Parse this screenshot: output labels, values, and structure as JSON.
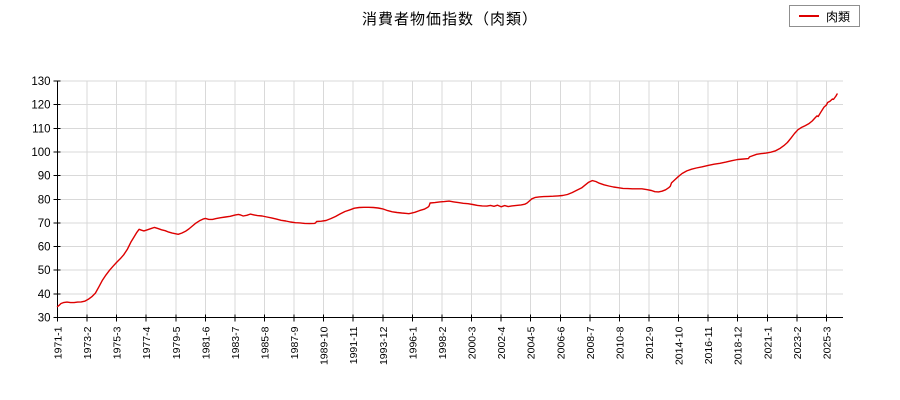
{
  "title": "消費者物価指数（肉類）",
  "legend": {
    "label": "肉類",
    "line_color": "#dd0000"
  },
  "colors": {
    "background": "#ffffff",
    "grid": "#d9d9d9",
    "axis": "#000000",
    "tick_text": "#000000",
    "series_red": "#dd0000"
  },
  "chart_data": {
    "type": "line",
    "title": "消費者物価指数（肉類）",
    "xlabel": "",
    "ylabel": "",
    "ylim": [
      30,
      130
    ],
    "y_ticks": [
      30,
      40,
      50,
      60,
      70,
      80,
      90,
      100,
      110,
      120,
      130
    ],
    "x_tick_labels": [
      "1971-1",
      "1973-2",
      "1975-3",
      "1977-4",
      "1979-5",
      "1981-6",
      "1983-7",
      "1985-8",
      "1987-9",
      "1989-10",
      "1991-11",
      "1993-12",
      "1996-1",
      "1998-2",
      "2000-3",
      "2002-4",
      "2004-5",
      "2006-6",
      "2008-7",
      "2010-8",
      "2012-9",
      "2014-10",
      "2016-11",
      "2018-12",
      "2021-1",
      "2023-2",
      "2025-3"
    ],
    "x_tick_month_interval": 25,
    "x_axis_months_total": 664,
    "grid": true,
    "legend_position": "top-right",
    "series": [
      {
        "name": "肉類",
        "color": "#dd0000",
        "points": [
          [
            "1971-1",
            34.6
          ],
          [
            "1971-2",
            35.0
          ],
          [
            "1971-4",
            35.9
          ],
          [
            "1971-6",
            36.3
          ],
          [
            "1971-9",
            36.5
          ],
          [
            "1971-12",
            36.3
          ],
          [
            "1972-3",
            36.3
          ],
          [
            "1972-6",
            36.5
          ],
          [
            "1972-9",
            36.6
          ],
          [
            "1972-12",
            36.9
          ],
          [
            "1973-3",
            37.7
          ],
          [
            "1973-6",
            38.8
          ],
          [
            "1973-9",
            40.3
          ],
          [
            "1973-12",
            43.0
          ],
          [
            "1974-3",
            45.8
          ],
          [
            "1974-6",
            48.0
          ],
          [
            "1974-9",
            50.0
          ],
          [
            "1974-12",
            51.7
          ],
          [
            "1975-3",
            53.3
          ],
          [
            "1975-6",
            54.8
          ],
          [
            "1975-9",
            56.5
          ],
          [
            "1975-12",
            58.8
          ],
          [
            "1976-3",
            61.8
          ],
          [
            "1976-6",
            64.3
          ],
          [
            "1976-8",
            66.0
          ],
          [
            "1976-10",
            67.3
          ],
          [
            "1976-12",
            66.9
          ],
          [
            "1977-2",
            66.6
          ],
          [
            "1977-5",
            67.1
          ],
          [
            "1977-8",
            67.6
          ],
          [
            "1977-11",
            68.1
          ],
          [
            "1978-2",
            67.6
          ],
          [
            "1978-5",
            67.1
          ],
          [
            "1978-8",
            66.7
          ],
          [
            "1978-11",
            66.1
          ],
          [
            "1979-2",
            65.7
          ],
          [
            "1979-5",
            65.4
          ],
          [
            "1979-7",
            65.2
          ],
          [
            "1979-10",
            65.7
          ],
          [
            "1980-1",
            66.4
          ],
          [
            "1980-4",
            67.4
          ],
          [
            "1980-7",
            68.7
          ],
          [
            "1980-10",
            69.9
          ],
          [
            "1981-1",
            70.9
          ],
          [
            "1981-4",
            71.6
          ],
          [
            "1981-6",
            71.9
          ],
          [
            "1981-9",
            71.5
          ],
          [
            "1981-12",
            71.5
          ],
          [
            "1982-3",
            71.8
          ],
          [
            "1982-7",
            72.2
          ],
          [
            "1982-11",
            72.5
          ],
          [
            "1983-3",
            72.8
          ],
          [
            "1983-7",
            73.3
          ],
          [
            "1983-10",
            73.6
          ],
          [
            "1983-12",
            73.3
          ],
          [
            "1984-2",
            72.9
          ],
          [
            "1984-5",
            73.2
          ],
          [
            "1984-8",
            73.7
          ],
          [
            "1984-11",
            73.4
          ],
          [
            "1985-2",
            73.1
          ],
          [
            "1985-6",
            72.9
          ],
          [
            "1985-10",
            72.5
          ],
          [
            "1986-2",
            72.1
          ],
          [
            "1986-6",
            71.6
          ],
          [
            "1986-10",
            71.1
          ],
          [
            "1987-2",
            70.8
          ],
          [
            "1987-6",
            70.4
          ],
          [
            "1987-10",
            70.1
          ],
          [
            "1988-2",
            70.0
          ],
          [
            "1988-6",
            69.8
          ],
          [
            "1988-10",
            69.7
          ],
          [
            "1989-2",
            69.8
          ],
          [
            "1989-3",
            69.9
          ],
          [
            "1989-4",
            70.6
          ],
          [
            "1989-8",
            70.7
          ],
          [
            "1989-12",
            71.0
          ],
          [
            "1990-4",
            71.8
          ],
          [
            "1990-8",
            72.7
          ],
          [
            "1990-12",
            73.8
          ],
          [
            "1991-4",
            74.8
          ],
          [
            "1991-8",
            75.5
          ],
          [
            "1991-12",
            76.2
          ],
          [
            "1992-4",
            76.5
          ],
          [
            "1992-8",
            76.6
          ],
          [
            "1992-12",
            76.6
          ],
          [
            "1993-4",
            76.5
          ],
          [
            "1993-8",
            76.3
          ],
          [
            "1993-12",
            75.9
          ],
          [
            "1994-4",
            75.2
          ],
          [
            "1994-8",
            74.7
          ],
          [
            "1994-12",
            74.4
          ],
          [
            "1995-4",
            74.2
          ],
          [
            "1995-8",
            74.0
          ],
          [
            "1995-10",
            73.9
          ],
          [
            "1995-12",
            74.1
          ],
          [
            "1996-3",
            74.5
          ],
          [
            "1996-7",
            75.2
          ],
          [
            "1996-11",
            75.8
          ],
          [
            "1997-2",
            76.6
          ],
          [
            "1997-3",
            77.1
          ],
          [
            "1997-4",
            78.4
          ],
          [
            "1997-8",
            78.6
          ],
          [
            "1997-12",
            78.9
          ],
          [
            "1998-4",
            79.0
          ],
          [
            "1998-8",
            79.2
          ],
          [
            "1998-12",
            78.9
          ],
          [
            "1999-4",
            78.6
          ],
          [
            "1999-8",
            78.3
          ],
          [
            "1999-12",
            78.1
          ],
          [
            "2000-4",
            77.8
          ],
          [
            "2000-8",
            77.4
          ],
          [
            "2000-12",
            77.2
          ],
          [
            "2001-4",
            77.1
          ],
          [
            "2001-7",
            77.4
          ],
          [
            "2001-10",
            77.0
          ],
          [
            "2002-1",
            77.5
          ],
          [
            "2002-4",
            76.8
          ],
          [
            "2002-7",
            77.3
          ],
          [
            "2002-10",
            76.9
          ],
          [
            "2003-1",
            77.2
          ],
          [
            "2003-5",
            77.4
          ],
          [
            "2003-9",
            77.6
          ],
          [
            "2003-12",
            77.9
          ],
          [
            "2004-2",
            78.4
          ],
          [
            "2004-4",
            79.3
          ],
          [
            "2004-6",
            80.2
          ],
          [
            "2004-9",
            80.8
          ],
          [
            "2004-12",
            81.0
          ],
          [
            "2005-4",
            81.1
          ],
          [
            "2005-8",
            81.2
          ],
          [
            "2005-12",
            81.3
          ],
          [
            "2006-4",
            81.4
          ],
          [
            "2006-8",
            81.6
          ],
          [
            "2006-12",
            82.0
          ],
          [
            "2007-4",
            82.8
          ],
          [
            "2007-8",
            83.8
          ],
          [
            "2007-12",
            84.8
          ],
          [
            "2008-3",
            86.0
          ],
          [
            "2008-6",
            87.2
          ],
          [
            "2008-9",
            87.9
          ],
          [
            "2008-12",
            87.5
          ],
          [
            "2009-3",
            86.8
          ],
          [
            "2009-7",
            86.1
          ],
          [
            "2009-11",
            85.6
          ],
          [
            "2010-3",
            85.2
          ],
          [
            "2010-7",
            84.9
          ],
          [
            "2010-11",
            84.6
          ],
          [
            "2011-3",
            84.5
          ],
          [
            "2011-7",
            84.4
          ],
          [
            "2011-11",
            84.4
          ],
          [
            "2012-3",
            84.4
          ],
          [
            "2012-7",
            84.1
          ],
          [
            "2012-11",
            83.7
          ],
          [
            "2013-2",
            83.2
          ],
          [
            "2013-5",
            83.1
          ],
          [
            "2013-8",
            83.4
          ],
          [
            "2013-11",
            84.0
          ],
          [
            "2014-2",
            85.0
          ],
          [
            "2014-3",
            85.5
          ],
          [
            "2014-4",
            86.9
          ],
          [
            "2014-7",
            88.3
          ],
          [
            "2014-10",
            89.7
          ],
          [
            "2015-1",
            90.9
          ],
          [
            "2015-5",
            92.0
          ],
          [
            "2015-9",
            92.7
          ],
          [
            "2016-1",
            93.2
          ],
          [
            "2016-6",
            93.7
          ],
          [
            "2016-11",
            94.3
          ],
          [
            "2017-4",
            94.8
          ],
          [
            "2017-9",
            95.2
          ],
          [
            "2018-2",
            95.7
          ],
          [
            "2018-7",
            96.3
          ],
          [
            "2018-12",
            96.8
          ],
          [
            "2019-5",
            97.0
          ],
          [
            "2019-9",
            97.2
          ],
          [
            "2019-10",
            97.9
          ],
          [
            "2019-12",
            98.3
          ],
          [
            "2020-4",
            99.0
          ],
          [
            "2020-8",
            99.3
          ],
          [
            "2020-12",
            99.5
          ],
          [
            "2021-4",
            99.9
          ],
          [
            "2021-8",
            100.5
          ],
          [
            "2021-12",
            101.6
          ],
          [
            "2022-3",
            102.7
          ],
          [
            "2022-6",
            104.0
          ],
          [
            "2022-9",
            105.8
          ],
          [
            "2022-12",
            107.8
          ],
          [
            "2023-3",
            109.4
          ],
          [
            "2023-6",
            110.4
          ],
          [
            "2023-9",
            111.1
          ],
          [
            "2023-12",
            111.9
          ],
          [
            "2024-3",
            113.1
          ],
          [
            "2024-5",
            114.2
          ],
          [
            "2024-7",
            115.3
          ],
          [
            "2024-8",
            115.0
          ],
          [
            "2024-10",
            116.6
          ],
          [
            "2024-12",
            118.2
          ],
          [
            "2025-1",
            119.0
          ],
          [
            "2025-3",
            119.8
          ],
          [
            "2025-4",
            120.9
          ],
          [
            "2025-6",
            121.4
          ],
          [
            "2025-8",
            122.4
          ],
          [
            "2025-9",
            122.2
          ],
          [
            "2025-11",
            123.6
          ],
          [
            "2025-12",
            124.5
          ]
        ]
      }
    ]
  }
}
